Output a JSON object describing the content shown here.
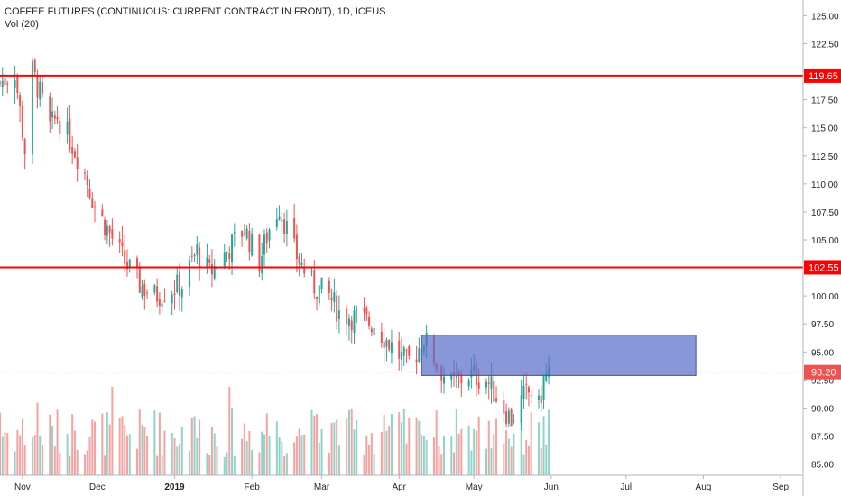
{
  "header": {
    "symbol_title": "COFFEE FUTURES (CONTINUOUS: CURRENT CONTRACT IN FRONT), 1D, ICEUS",
    "volume_label": "Vol (20)"
  },
  "colors": {
    "up": "#26a69a",
    "down": "#ef5350",
    "up_volume": "#8fd3c9",
    "down_volume": "#f5a3a1",
    "hline": "#ff0000",
    "zone_fill": "#5a6fc8",
    "zone_stroke": "#3c4fa8",
    "last_price_badge": "#ef5350",
    "axis_text": "#1e222d",
    "axis_line": "#b2b5be"
  },
  "chart_data": {
    "type": "candlestick",
    "title": "COFFEE FUTURES (CONTINUOUS: CURRENT CONTRACT IN FRONT), 1D, ICEUS",
    "x_labels": [
      "Nov",
      "Dec",
      "2019",
      "Feb",
      "Mar",
      "Apr",
      "May",
      "Jun",
      "Jul",
      "Aug",
      "Sep"
    ],
    "x_label_dates": [
      "2018-11-01",
      "2018-12-01",
      "2019-01-01",
      "2019-02-01",
      "2019-03-01",
      "2019-04-01",
      "2019-05-01",
      "2019-06-01",
      "2019-07-01",
      "2019-08-01",
      "2019-09-01"
    ],
    "x_range": [
      "2018-10-23",
      "2019-09-10"
    ],
    "y_ticks": [
      85.0,
      87.5,
      90.0,
      92.5,
      95.0,
      97.5,
      100.0,
      102.5,
      105.0,
      107.5,
      110.0,
      112.5,
      115.0,
      117.5,
      120.0,
      122.5,
      125.0
    ],
    "y_tick_labels": [
      "85.00",
      "87.50",
      "90.00",
      "92.50",
      "95.00",
      "97.50",
      "100.00",
      "102.50",
      "105.00",
      "107.50",
      "110.00",
      "112.50",
      "115.00",
      "117.50",
      "120.00",
      "122.50",
      "125.00"
    ],
    "ylim": [
      84.0,
      126.4
    ],
    "horizontal_lines": [
      {
        "price": 119.65,
        "label": "119.65"
      },
      {
        "price": 102.55,
        "label": "102.55"
      }
    ],
    "last_price": {
      "price": 93.2,
      "label": "93.20"
    },
    "zone": {
      "start": "2019-04-10",
      "end": "2019-07-29",
      "top": 96.5,
      "bottom": 92.9
    },
    "price_anchors": [
      [
        "2018-10-23",
        119.0
      ],
      [
        "2018-10-29",
        120.0
      ],
      [
        "2018-11-02",
        113.0
      ],
      [
        "2018-11-05",
        120.0
      ],
      [
        "2018-11-08",
        118.0
      ],
      [
        "2018-11-12",
        115.0
      ],
      [
        "2018-11-15",
        116.0
      ],
      [
        "2018-11-20",
        114.0
      ],
      [
        "2018-11-26",
        111.0
      ],
      [
        "2018-11-30",
        108.0
      ],
      [
        "2018-12-05",
        106.0
      ],
      [
        "2018-12-12",
        103.0
      ],
      [
        "2018-12-18",
        101.0
      ],
      [
        "2018-12-24",
        100.0
      ],
      [
        "2019-01-04",
        101.0
      ],
      [
        "2019-01-10",
        104.0
      ],
      [
        "2019-01-15",
        102.0
      ],
      [
        "2019-01-22",
        104.0
      ],
      [
        "2019-01-29",
        106.0
      ],
      [
        "2019-02-04",
        103.0
      ],
      [
        "2019-02-08",
        106.0
      ],
      [
        "2019-02-12",
        108.0
      ],
      [
        "2019-02-18",
        104.0
      ],
      [
        "2019-02-25",
        101.0
      ],
      [
        "2019-03-04",
        100.0
      ],
      [
        "2019-03-08",
        98.5
      ],
      [
        "2019-03-15",
        98.0
      ],
      [
        "2019-03-22",
        97.5
      ],
      [
        "2019-03-29",
        95.5
      ],
      [
        "2019-04-04",
        94.0
      ],
      [
        "2019-04-08",
        95.0
      ],
      [
        "2019-04-11",
        96.2
      ],
      [
        "2019-04-16",
        94.0
      ],
      [
        "2019-04-22",
        92.0
      ],
      [
        "2019-04-29",
        93.0
      ],
      [
        "2019-05-06",
        92.5
      ],
      [
        "2019-05-13",
        90.0
      ],
      [
        "2019-05-16",
        89.0
      ],
      [
        "2019-05-21",
        91.0
      ],
      [
        "2019-05-24",
        91.5
      ],
      [
        "2019-05-27",
        90.0
      ],
      [
        "2019-05-29",
        92.5
      ],
      [
        "2019-05-31",
        93.2
      ]
    ],
    "volume_max_fraction_of_pane": 1.0,
    "legend": "none",
    "grid": false
  }
}
